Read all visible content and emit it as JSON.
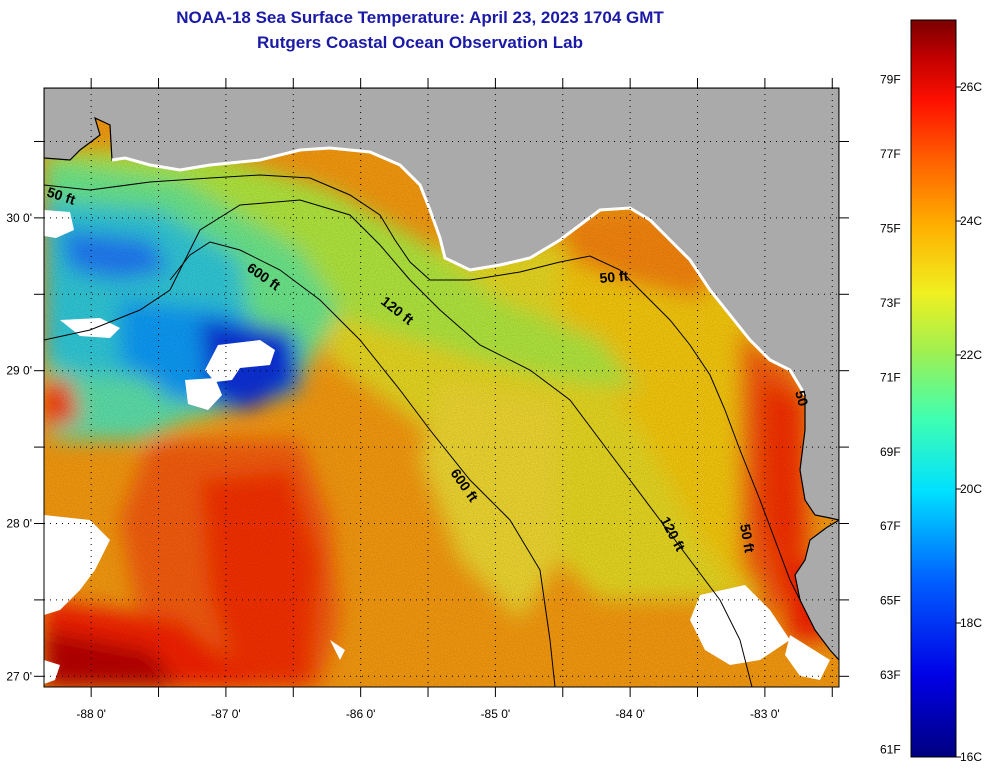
{
  "title": {
    "line1": "NOAA-18 Sea Surface Temperature:  April 23, 2023 1704 GMT",
    "line2": "Rutgers Coastal Ocean Observation Lab"
  },
  "axes": {
    "lon_labels": [
      "-88 0'",
      "-87 0'",
      "-86 0'",
      "-85 0'",
      "-84 0'",
      "-83 0'"
    ],
    "lon_values": [
      -88,
      -87,
      -86,
      -85,
      -84,
      -83
    ],
    "lat_labels": [
      "30 0'",
      "29 0'",
      "28 0'",
      "27 0'"
    ],
    "lat_values": [
      30,
      29,
      28,
      27
    ],
    "lon_range": [
      -88.35,
      -82.45
    ],
    "lat_range": [
      26.93,
      30.85
    ]
  },
  "contours": {
    "label_50_west": "50 ft",
    "label_600_north": "600 ft",
    "label_120_north": "120 ft",
    "label_50_big_bend": "50 ft",
    "label_600_south": "600 ft",
    "label_120_south": "120 ft",
    "label_50_south": "50 ft",
    "label_50_coast": "50"
  },
  "colorbar": {
    "min_c": 16,
    "max_c": 27,
    "fahrenheit": [
      {
        "value": 79,
        "label": "79F"
      },
      {
        "value": 77,
        "label": "77F"
      },
      {
        "value": 75,
        "label": "75F"
      },
      {
        "value": 73,
        "label": "73F"
      },
      {
        "value": 71,
        "label": "71F"
      },
      {
        "value": 69,
        "label": "69F"
      },
      {
        "value": 67,
        "label": "67F"
      },
      {
        "value": 65,
        "label": "65F"
      },
      {
        "value": 63,
        "label": "63F"
      },
      {
        "value": 61,
        "label": "61F"
      }
    ],
    "celsius": [
      {
        "value": 26,
        "label": "26C"
      },
      {
        "value": 24,
        "label": "24C"
      },
      {
        "value": 22,
        "label": "22C"
      },
      {
        "value": 20,
        "label": "20C"
      },
      {
        "value": 18,
        "label": "18C"
      },
      {
        "value": 16,
        "label": "16C"
      }
    ]
  },
  "colors": {
    "land": "#aaaaaa",
    "title": "#1a1aa6",
    "cloud": "#ffffff"
  }
}
